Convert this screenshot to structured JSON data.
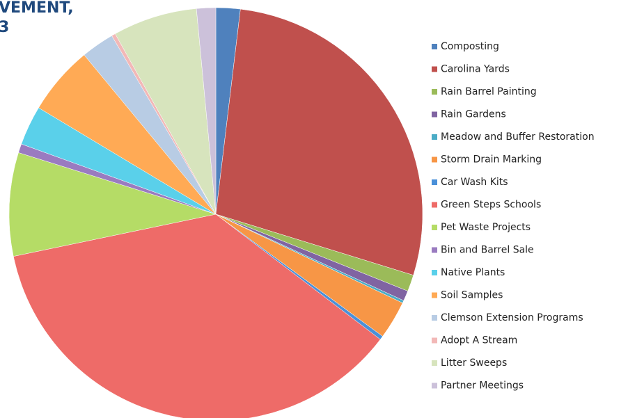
{
  "chart_data": {
    "type": "pie",
    "title": [
      "VEMENT,",
      "3"
    ],
    "categories": [
      "Composting",
      "Carolina Yards",
      "Rain Barrel Painting",
      "Rain Gardens",
      "Meadow and Buffer Restoration",
      "Storm Drain Marking",
      "Car Wash Kits",
      "Green Steps Schools",
      "Pet Waste Projects",
      "Bin and Barrel Sale",
      "Native Plants",
      "Soil Samples",
      "Clemson Extension Programs",
      "Adopt A Stream",
      "Litter Sweeps",
      "Partner Meetings"
    ],
    "values": [
      1.9,
      27.9,
      1.3,
      0.8,
      0.2,
      3.0,
      0.3,
      36.4,
      8.1,
      0.7,
      3.1,
      5.4,
      2.6,
      0.3,
      6.6,
      1.5
    ],
    "colors": [
      "#4f81bd",
      "#c0504d",
      "#9bbb59",
      "#8064a2",
      "#4bacc6",
      "#f79646",
      "#4a90d9",
      "#ee6b68",
      "#b5dc66",
      "#9a7bc0",
      "#5ad0ea",
      "#ffaa55",
      "#b8cce4",
      "#f2b8b7",
      "#d7e4bd",
      "#ccc1da"
    ],
    "legend": "right"
  }
}
